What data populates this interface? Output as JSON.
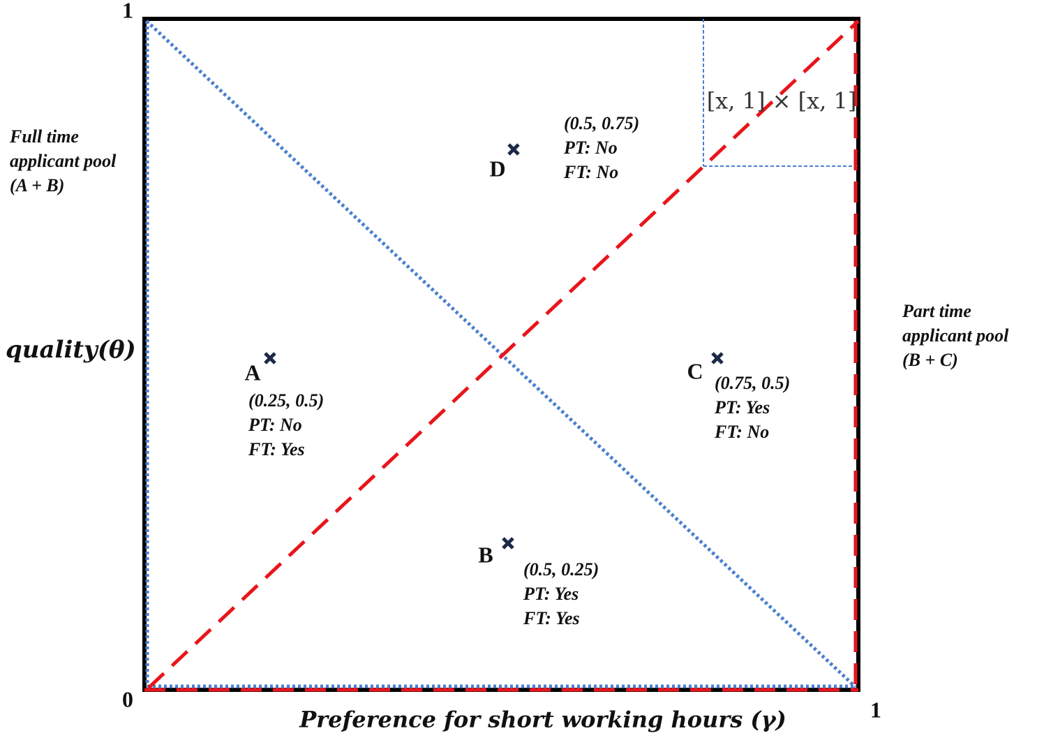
{
  "axes": {
    "y_max": "1",
    "origin": "0",
    "x_max": "1",
    "y_label": "quality(θ)",
    "x_label": "Preference for short working hours (γ)"
  },
  "full_time_pool": [
    "Full time",
    "applicant pool",
    "(A + B)"
  ],
  "part_time_pool": [
    "Part time",
    "applicant pool",
    "(B + C)"
  ],
  "region_label": "[x, 1] × [x, 1]",
  "points": [
    {
      "letter": "A",
      "coords": "(0.25, 0.5)",
      "pt": "PT: No",
      "ft": "FT: Yes"
    },
    {
      "letter": "D",
      "coords": "(0.5, 0.75)",
      "pt": "PT: No",
      "ft": "FT: No"
    },
    {
      "letter": "C",
      "coords": "(0.75, 0.5)",
      "pt": "PT: Yes",
      "ft": "FT: No"
    },
    {
      "letter": "B",
      "coords": "(0.5, 0.25)",
      "pt": "PT: Yes",
      "ft": "FT: Yes"
    }
  ]
}
